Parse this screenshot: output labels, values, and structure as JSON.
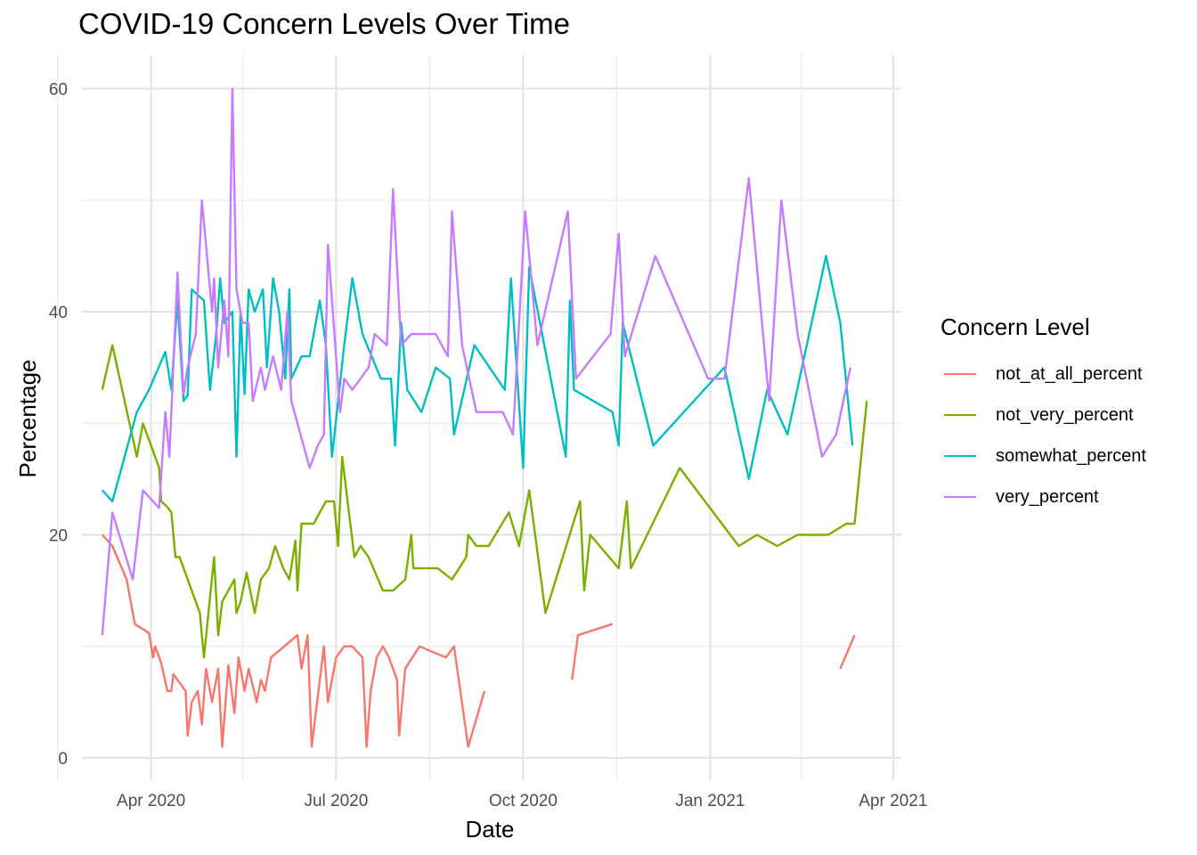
{
  "chart_data": {
    "type": "line",
    "title": "COVID-19 Concern Levels Over Time",
    "xlabel": "Date",
    "ylabel": "Percentage",
    "xlim": [
      "2020-02-27",
      "2021-04-05"
    ],
    "ylim": [
      -2,
      63
    ],
    "x_ticks": [
      {
        "date": "2020-04-01",
        "label": "Apr 2020"
      },
      {
        "date": "2020-07-01",
        "label": "Jul 2020"
      },
      {
        "date": "2020-10-01",
        "label": "Oct 2020"
      },
      {
        "date": "2021-01-01",
        "label": "Jan 2021"
      },
      {
        "date": "2021-04-01",
        "label": "Apr 2021"
      }
    ],
    "x_minor_ticks": [
      "2020-02-15",
      "2020-05-16",
      "2020-08-16",
      "2020-11-16",
      "2021-02-15"
    ],
    "y_ticks": [
      0,
      20,
      40,
      60
    ],
    "y_minor_ticks": [
      10,
      30,
      50
    ],
    "grid": true,
    "legend": {
      "title": "Concern Level",
      "position": "right"
    },
    "series": [
      {
        "name": "not_at_all_percent",
        "color": "#F8766D",
        "points": [
          [
            "2020-03-08",
            20
          ],
          [
            "2020-03-13",
            19
          ],
          [
            "2020-03-20",
            16
          ],
          [
            "2020-03-24",
            12
          ],
          [
            "2020-03-31",
            11.2
          ],
          [
            "2020-04-02",
            9
          ],
          [
            "2020-04-03",
            10
          ],
          [
            "2020-04-06",
            8.5
          ],
          [
            "2020-04-09",
            6
          ],
          [
            "2020-04-11",
            6
          ],
          [
            "2020-04-12",
            7.5
          ],
          [
            "2020-04-18",
            6
          ],
          [
            "2020-04-19",
            2
          ],
          [
            "2020-04-21",
            5
          ],
          [
            "2020-04-24",
            6
          ],
          [
            "2020-04-26",
            3
          ],
          [
            "2020-04-28",
            8
          ],
          [
            "2020-05-01",
            5
          ],
          [
            "2020-05-04",
            8
          ],
          [
            "2020-05-06",
            1
          ],
          [
            "2020-05-09",
            8.3
          ],
          [
            "2020-05-12",
            4
          ],
          [
            "2020-05-14",
            9
          ],
          [
            "2020-05-17",
            6
          ],
          [
            "2020-05-19",
            8
          ],
          [
            "2020-05-23",
            5
          ],
          [
            "2020-05-25",
            7
          ],
          [
            "2020-05-27",
            6
          ],
          [
            "2020-05-30",
            9
          ],
          [
            "2020-06-12",
            11
          ],
          [
            "2020-06-14",
            8
          ],
          [
            "2020-06-17",
            11
          ],
          [
            "2020-06-19",
            1
          ],
          [
            "2020-06-25",
            10
          ],
          [
            "2020-06-27",
            5
          ],
          [
            "2020-07-01",
            9
          ],
          [
            "2020-07-05",
            10
          ],
          [
            "2020-07-09",
            10
          ],
          [
            "2020-07-14",
            9
          ],
          [
            "2020-07-16",
            1
          ],
          [
            "2020-07-18",
            6
          ],
          [
            "2020-07-21",
            9
          ],
          [
            "2020-07-24",
            10
          ],
          [
            "2020-07-27",
            9
          ],
          [
            "2020-07-31",
            7
          ],
          [
            "2020-08-01",
            2
          ],
          [
            "2020-08-04",
            8
          ],
          [
            "2020-08-11",
            10
          ],
          [
            "2020-08-24",
            9
          ],
          [
            "2020-08-28",
            10
          ],
          [
            "2020-09-04",
            1
          ],
          [
            "2020-09-12",
            6
          ],
          null,
          [
            "2020-10-25",
            7
          ],
          [
            "2020-10-28",
            11
          ],
          [
            "2020-11-14",
            12
          ],
          null,
          [
            "2021-03-06",
            8
          ],
          [
            "2021-03-13",
            11
          ]
        ]
      },
      {
        "name": "not_very_percent",
        "color": "#7CAE00",
        "points": [
          [
            "2020-03-08",
            33
          ],
          [
            "2020-03-13",
            37
          ],
          [
            "2020-03-25",
            27
          ],
          [
            "2020-03-28",
            30
          ],
          [
            "2020-04-05",
            26
          ],
          [
            "2020-04-06",
            23
          ],
          [
            "2020-04-09",
            22.5
          ],
          [
            "2020-04-11",
            22
          ],
          [
            "2020-04-13",
            18
          ],
          [
            "2020-04-15",
            18
          ],
          [
            "2020-04-25",
            13
          ],
          [
            "2020-04-27",
            9
          ],
          [
            "2020-05-02",
            18
          ],
          [
            "2020-05-04",
            11
          ],
          [
            "2020-05-06",
            14
          ],
          [
            "2020-05-12",
            16
          ],
          [
            "2020-05-13",
            13
          ],
          [
            "2020-05-15",
            14
          ],
          [
            "2020-05-18",
            16.6
          ],
          [
            "2020-05-22",
            13
          ],
          [
            "2020-05-25",
            16
          ],
          [
            "2020-05-29",
            17
          ],
          [
            "2020-06-01",
            19
          ],
          [
            "2020-06-05",
            17
          ],
          [
            "2020-06-08",
            16
          ],
          [
            "2020-06-11",
            19.5
          ],
          [
            "2020-06-12",
            15
          ],
          [
            "2020-06-14",
            21
          ],
          [
            "2020-06-20",
            21
          ],
          [
            "2020-06-26",
            23
          ],
          [
            "2020-06-30",
            23
          ],
          [
            "2020-07-02",
            19
          ],
          [
            "2020-07-04",
            27
          ],
          [
            "2020-07-10",
            18
          ],
          [
            "2020-07-13",
            19
          ],
          [
            "2020-07-17",
            18
          ],
          [
            "2020-07-24",
            15
          ],
          [
            "2020-07-29",
            15
          ],
          [
            "2020-08-04",
            16
          ],
          [
            "2020-08-07",
            20
          ],
          [
            "2020-08-08",
            17
          ],
          [
            "2020-08-20",
            17
          ],
          [
            "2020-08-27",
            16
          ],
          [
            "2020-09-03",
            18
          ],
          [
            "2020-09-04",
            20
          ],
          [
            "2020-09-08",
            19
          ],
          [
            "2020-09-14",
            19
          ],
          [
            "2020-09-24",
            22
          ],
          [
            "2020-09-29",
            19
          ],
          [
            "2020-10-04",
            24
          ],
          [
            "2020-10-12",
            13
          ],
          [
            "2020-10-29",
            23
          ],
          [
            "2020-10-31",
            15
          ],
          [
            "2020-11-03",
            20
          ],
          [
            "2020-11-17",
            17
          ],
          [
            "2020-11-21",
            23
          ],
          [
            "2020-11-23",
            17
          ],
          [
            "2020-12-17",
            26
          ],
          [
            "2021-01-15",
            19
          ],
          [
            "2021-01-24",
            20
          ],
          [
            "2021-02-03",
            19
          ],
          [
            "2021-02-13",
            20
          ],
          [
            "2021-02-28",
            20
          ],
          [
            "2021-03-09",
            21
          ],
          [
            "2021-03-13",
            21
          ],
          [
            "2021-03-19",
            32
          ]
        ]
      },
      {
        "name": "somewhat_percent",
        "color": "#00BFC4",
        "points": [
          [
            "2020-03-08",
            24
          ],
          [
            "2020-03-13",
            23
          ],
          [
            "2020-03-25",
            31
          ],
          [
            "2020-03-31",
            33
          ],
          [
            "2020-04-08",
            36.4
          ],
          [
            "2020-04-11",
            33
          ],
          [
            "2020-04-14",
            41
          ],
          [
            "2020-04-17",
            32
          ],
          [
            "2020-04-19",
            32.5
          ],
          [
            "2020-04-21",
            42
          ],
          [
            "2020-04-27",
            41
          ],
          [
            "2020-04-30",
            33
          ],
          [
            "2020-05-03",
            38
          ],
          [
            "2020-05-05",
            43
          ],
          [
            "2020-05-07",
            39
          ],
          [
            "2020-05-11",
            40
          ],
          [
            "2020-05-13",
            27
          ],
          [
            "2020-05-15",
            40
          ],
          [
            "2020-05-17",
            32.6
          ],
          [
            "2020-05-19",
            42
          ],
          [
            "2020-05-22",
            40
          ],
          [
            "2020-05-26",
            42
          ],
          [
            "2020-05-28",
            35
          ],
          [
            "2020-05-31",
            43
          ],
          [
            "2020-06-03",
            40
          ],
          [
            "2020-06-06",
            34
          ],
          [
            "2020-06-08",
            42
          ],
          [
            "2020-06-09",
            34
          ],
          [
            "2020-06-14",
            36
          ],
          [
            "2020-06-18",
            36
          ],
          [
            "2020-06-23",
            41
          ],
          [
            "2020-06-26",
            37
          ],
          [
            "2020-06-29",
            27
          ],
          [
            "2020-07-05",
            37
          ],
          [
            "2020-07-09",
            43
          ],
          [
            "2020-07-14",
            38
          ],
          [
            "2020-07-23",
            34
          ],
          [
            "2020-07-28",
            34
          ],
          [
            "2020-07-30",
            28
          ],
          [
            "2020-08-02",
            39
          ],
          [
            "2020-08-05",
            33
          ],
          [
            "2020-08-12",
            31
          ],
          [
            "2020-08-19",
            35
          ],
          [
            "2020-08-26",
            34
          ],
          [
            "2020-08-28",
            29
          ],
          [
            "2020-09-02",
            33
          ],
          [
            "2020-09-07",
            37
          ],
          [
            "2020-09-22",
            33
          ],
          [
            "2020-09-25",
            43
          ],
          [
            "2020-10-01",
            26
          ],
          [
            "2020-10-04",
            44
          ],
          [
            "2020-10-22",
            27
          ],
          [
            "2020-10-24",
            41
          ],
          [
            "2020-10-26",
            33
          ],
          [
            "2020-11-14",
            31
          ],
          [
            "2020-11-17",
            28
          ],
          [
            "2020-11-19",
            39
          ],
          [
            "2020-12-04",
            28
          ],
          [
            "2021-01-08",
            35
          ],
          [
            "2021-01-20",
            25
          ],
          [
            "2021-01-29",
            33
          ],
          [
            "2021-02-08",
            29
          ],
          [
            "2021-02-27",
            45
          ],
          [
            "2021-03-06",
            39
          ],
          [
            "2021-03-12",
            28
          ]
        ]
      },
      {
        "name": "very_percent",
        "color": "#C77CFF",
        "points": [
          [
            "2020-03-08",
            11
          ],
          [
            "2020-03-13",
            22
          ],
          [
            "2020-03-23",
            16
          ],
          [
            "2020-03-28",
            24
          ],
          [
            "2020-04-05",
            22.4
          ],
          [
            "2020-04-08",
            31
          ],
          [
            "2020-04-10",
            27
          ],
          [
            "2020-04-14",
            43.5
          ],
          [
            "2020-04-17",
            32.6
          ],
          [
            "2020-04-19",
            35
          ],
          [
            "2020-04-23",
            38
          ],
          [
            "2020-04-26",
            50
          ],
          [
            "2020-04-28",
            46
          ],
          [
            "2020-05-01",
            40
          ],
          [
            "2020-05-02",
            43
          ],
          [
            "2020-05-04",
            35
          ],
          [
            "2020-05-07",
            41
          ],
          [
            "2020-05-09",
            36
          ],
          [
            "2020-05-11",
            60
          ],
          [
            "2020-05-13",
            42
          ],
          [
            "2020-05-16",
            39
          ],
          [
            "2020-05-19",
            39
          ],
          [
            "2020-05-21",
            32
          ],
          [
            "2020-05-25",
            35
          ],
          [
            "2020-05-27",
            33
          ],
          [
            "2020-05-31",
            36
          ],
          [
            "2020-06-04",
            33
          ],
          [
            "2020-06-07",
            40
          ],
          [
            "2020-06-09",
            32
          ],
          [
            "2020-06-18",
            26
          ],
          [
            "2020-06-22",
            28
          ],
          [
            "2020-06-25",
            29
          ],
          [
            "2020-06-27",
            46
          ],
          [
            "2020-07-03",
            31
          ],
          [
            "2020-07-05",
            34
          ],
          [
            "2020-07-09",
            33
          ],
          [
            "2020-07-17",
            35
          ],
          [
            "2020-07-20",
            38
          ],
          [
            "2020-07-26",
            37
          ],
          [
            "2020-07-29",
            51
          ],
          [
            "2020-08-02",
            37
          ],
          [
            "2020-08-07",
            38
          ],
          [
            "2020-08-19",
            38
          ],
          [
            "2020-08-25",
            36
          ],
          [
            "2020-08-27",
            49
          ],
          [
            "2020-09-01",
            37
          ],
          [
            "2020-09-08",
            31
          ],
          [
            "2020-09-21",
            31
          ],
          [
            "2020-09-26",
            29
          ],
          [
            "2020-10-02",
            49
          ],
          [
            "2020-10-08",
            37
          ],
          [
            "2020-10-23",
            49
          ],
          [
            "2020-10-27",
            34
          ],
          [
            "2020-11-13",
            38
          ],
          [
            "2020-11-17",
            47
          ],
          [
            "2020-11-20",
            36
          ],
          [
            "2020-12-05",
            45
          ],
          [
            "2020-12-31",
            34
          ],
          [
            "2021-01-08",
            34
          ],
          [
            "2021-01-20",
            52
          ],
          [
            "2021-01-30",
            32
          ],
          [
            "2021-02-05",
            50
          ],
          [
            "2021-02-13",
            38
          ],
          [
            "2021-02-25",
            27
          ],
          [
            "2021-03-04",
            29
          ],
          [
            "2021-03-11",
            35
          ]
        ]
      }
    ]
  }
}
